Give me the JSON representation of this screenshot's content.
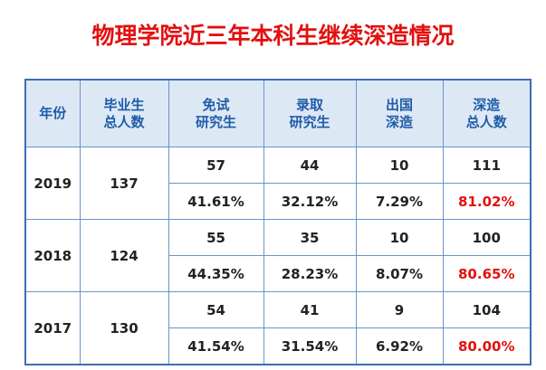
{
  "title": "物理学院近三年本科生继续深造情况",
  "table": {
    "header": [
      [
        "年份"
      ],
      [
        "毕业生",
        "总人数"
      ],
      [
        "免试",
        "研究生"
      ],
      [
        "录取",
        "研究生"
      ],
      [
        "出国",
        "深造"
      ],
      [
        "深造",
        "总人数"
      ]
    ],
    "rows": [
      {
        "year": "2019",
        "graduates": "137",
        "counts": [
          "57",
          "44",
          "10",
          "111"
        ],
        "percents": [
          "41.61%",
          "32.12%",
          "7.29%",
          "81.02%"
        ]
      },
      {
        "year": "2018",
        "graduates": "124",
        "counts": [
          "55",
          "35",
          "10",
          "100"
        ],
        "percents": [
          "44.35%",
          "28.23%",
          "8.07%",
          "80.65%"
        ]
      },
      {
        "year": "2017",
        "graduates": "130",
        "counts": [
          "54",
          "41",
          "9",
          "104"
        ],
        "percents": [
          "41.54%",
          "31.54%",
          "6.92%",
          "80.00%"
        ]
      }
    ]
  }
}
